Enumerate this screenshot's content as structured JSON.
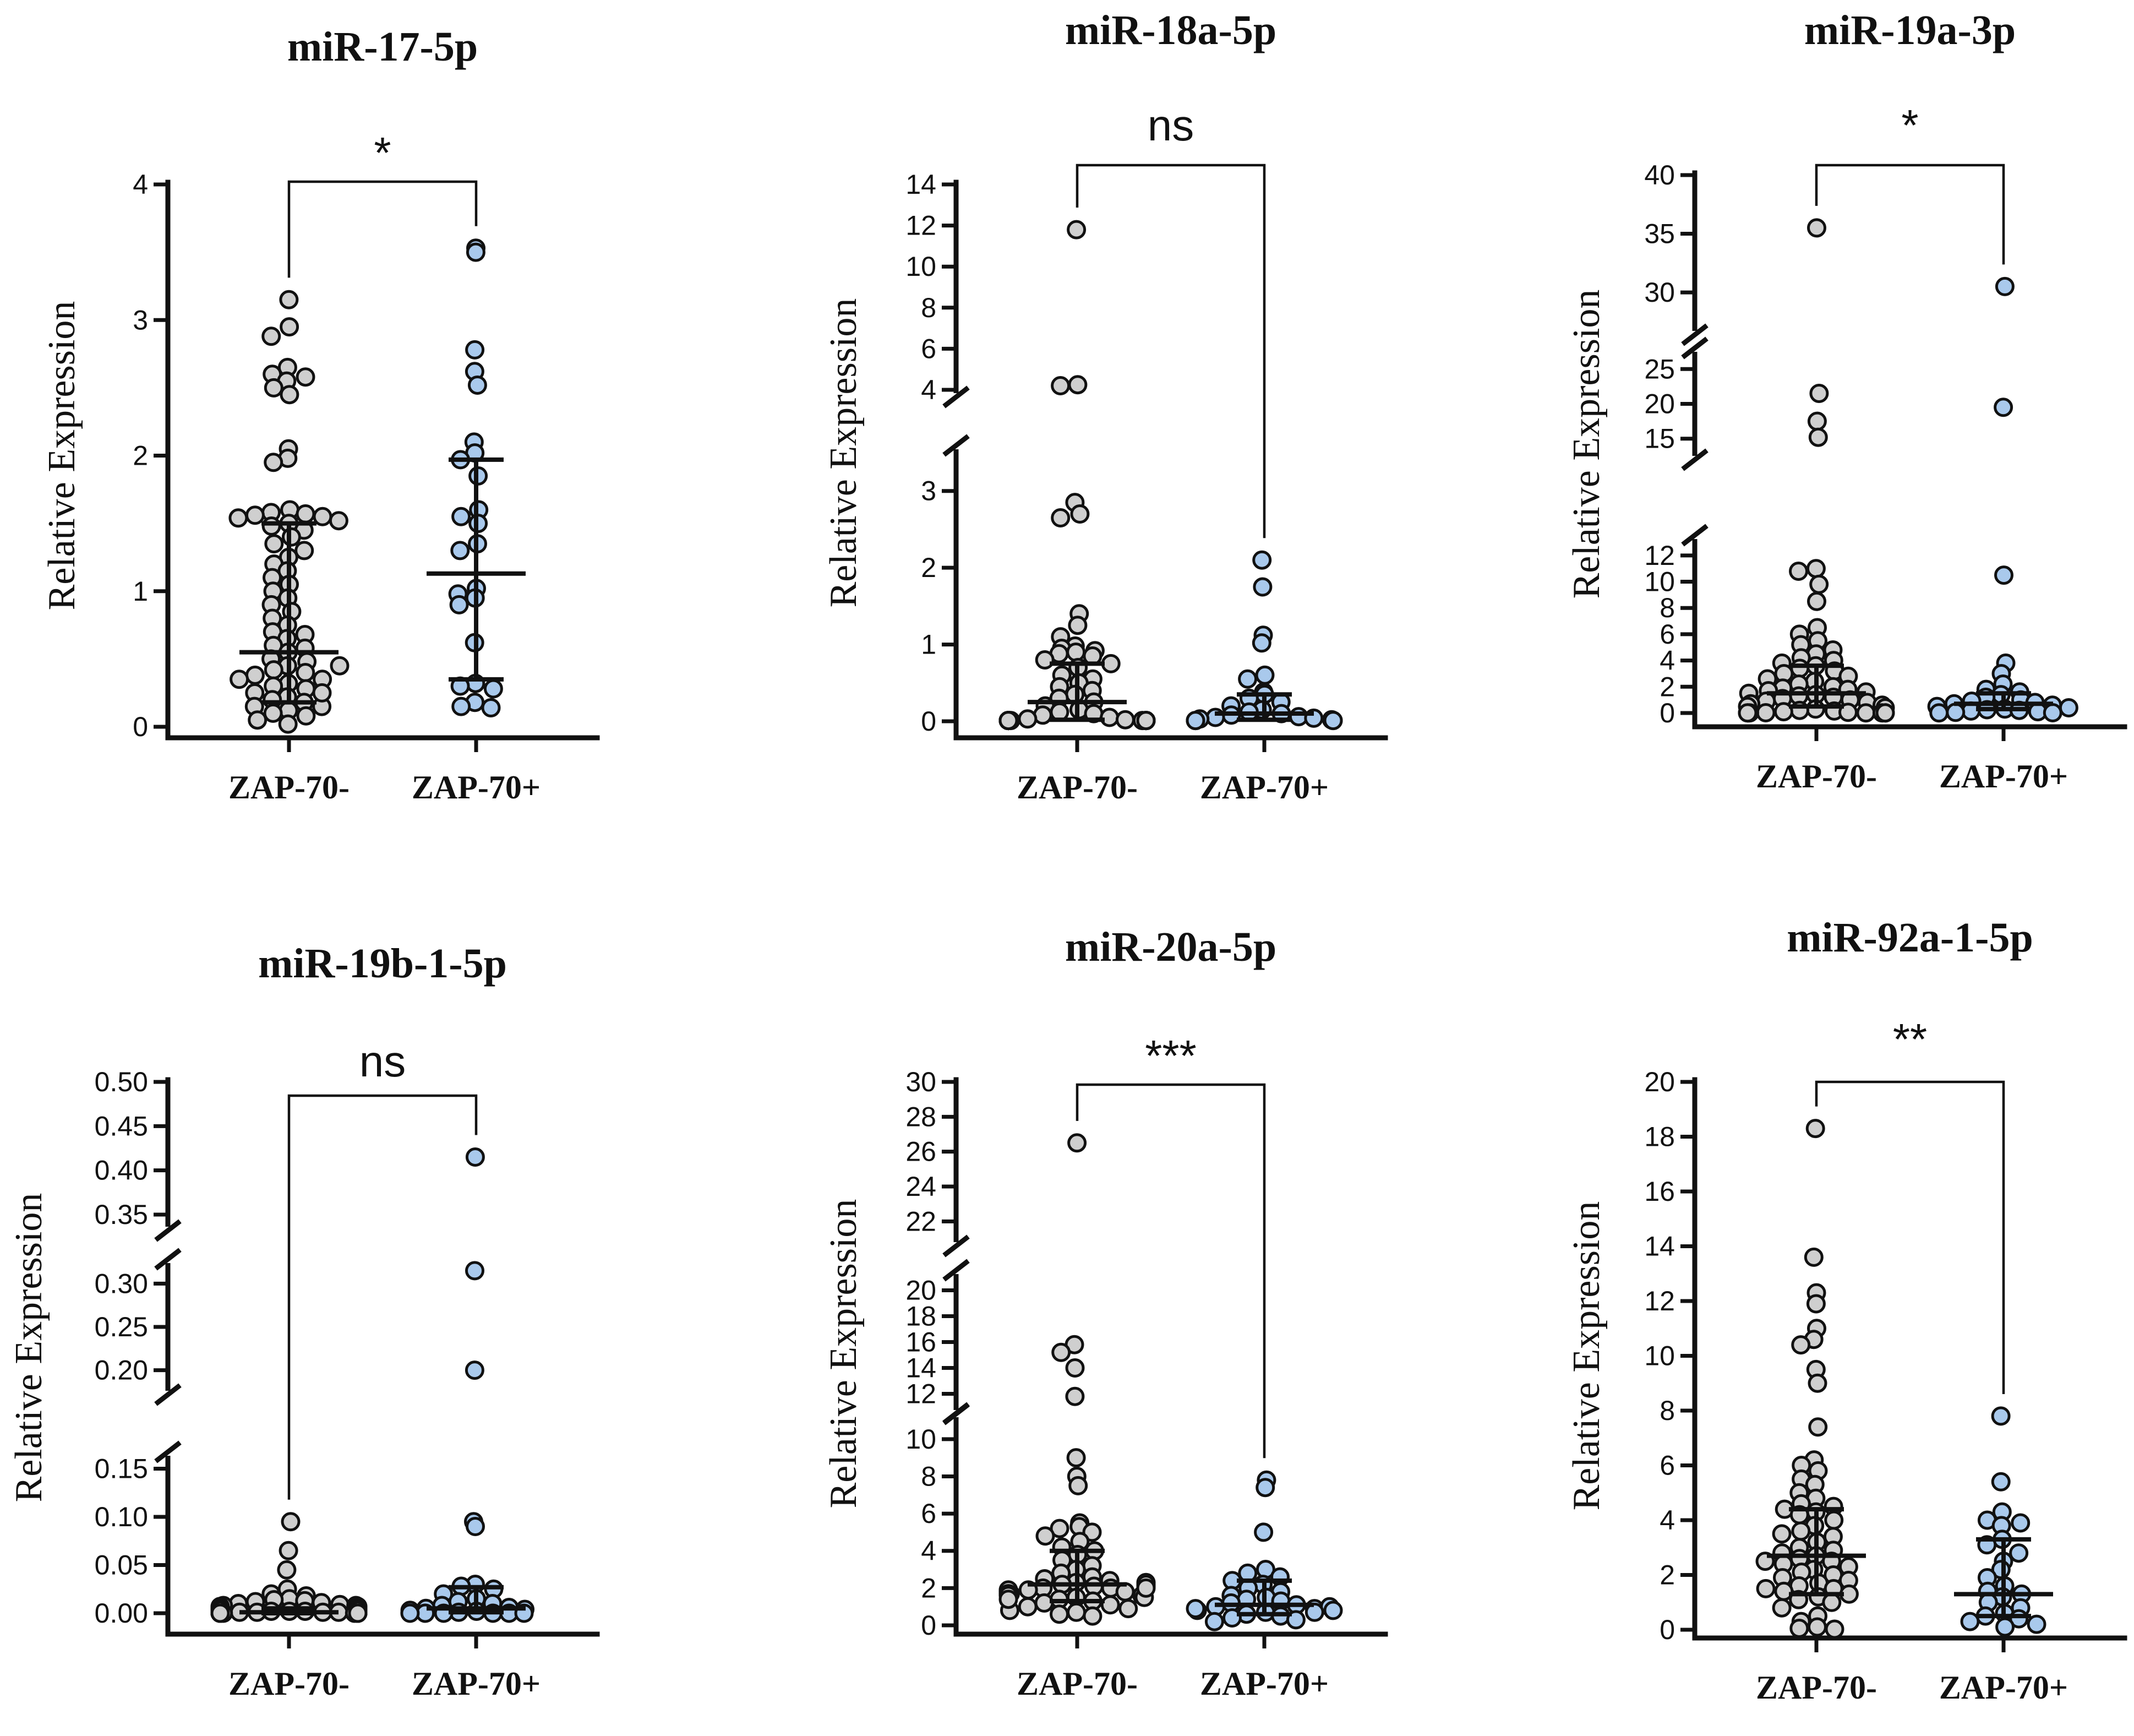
{
  "colors": {
    "zap_neg": "#cfcfcf",
    "zap_pos": "#a9c9ec",
    "ink": "#111111"
  },
  "chart_data": [
    {
      "type": "scatter",
      "title": "miR-17-5p",
      "ylabel": "Relative Expression",
      "categories": [
        "ZAP-70-",
        "ZAP-70+"
      ],
      "significance": "*",
      "ylim": [
        0,
        4
      ],
      "segments": [
        {
          "range": [
            0,
            4
          ],
          "ticks": [
            0,
            1,
            2,
            3,
            4
          ]
        }
      ],
      "series": [
        {
          "name": "ZAP-70-",
          "median": 0.55,
          "q1": 0.18,
          "q3": 1.5,
          "values": [
            3.15,
            2.95,
            2.88,
            2.65,
            2.6,
            2.58,
            2.55,
            2.5,
            2.45,
            2.05,
            1.98,
            1.95,
            1.6,
            1.58,
            1.57,
            1.56,
            1.55,
            1.54,
            1.52,
            1.5,
            1.48,
            1.45,
            1.4,
            1.35,
            1.3,
            1.25,
            1.2,
            1.15,
            1.1,
            1.05,
            1.0,
            0.95,
            0.9,
            0.85,
            0.8,
            0.75,
            0.7,
            0.68,
            0.65,
            0.6,
            0.58,
            0.55,
            0.5,
            0.48,
            0.45,
            0.42,
            0.4,
            0.38,
            0.35,
            0.32,
            0.3,
            0.28,
            0.25,
            0.22,
            0.2,
            0.18,
            0.15,
            0.12,
            0.1,
            0.08,
            0.05,
            0.02,
            0.15,
            0.25,
            0.35,
            0.45
          ]
        },
        {
          "name": "ZAP-70+",
          "median": 1.13,
          "q1": 0.35,
          "q3": 1.97,
          "values": [
            3.53,
            3.5,
            2.78,
            2.62,
            2.52,
            2.1,
            2.02,
            1.97,
            1.85,
            1.6,
            1.55,
            1.5,
            1.35,
            1.3,
            1.02,
            0.98,
            0.95,
            0.9,
            0.62,
            0.32,
            0.3,
            0.28,
            0.18,
            0.15,
            0.14
          ]
        }
      ]
    },
    {
      "type": "scatter",
      "title": "miR-18a-5p",
      "ylabel": "Relative Expression",
      "categories": [
        "ZAP-70-",
        "ZAP-70+"
      ],
      "significance": "ns",
      "ylim": [
        0,
        14
      ],
      "segments": [
        {
          "range": [
            0,
            3.5
          ],
          "ticks": [
            0,
            1,
            2,
            3
          ]
        },
        {
          "range": [
            4,
            14
          ],
          "ticks": [
            4,
            6,
            8,
            10,
            12,
            14
          ]
        }
      ],
      "series": [
        {
          "name": "ZAP-70-",
          "median": 0.25,
          "q1": 0.02,
          "q3": 0.75,
          "values": [
            11.8,
            4.25,
            4.2,
            2.85,
            2.7,
            2.65,
            1.4,
            1.25,
            1.1,
            0.98,
            0.95,
            0.92,
            0.9,
            0.88,
            0.85,
            0.8,
            0.75,
            0.7,
            0.6,
            0.55,
            0.5,
            0.45,
            0.4,
            0.35,
            0.3,
            0.25,
            0.2,
            0.15,
            0.12,
            0.1,
            0.08,
            0.05,
            0.03,
            0.02,
            0.01,
            0.01,
            0.01,
            0.01,
            0.01,
            0.01,
            0.01,
            0.01,
            0.01,
            0.01,
            0.01,
            0.01,
            0.01,
            0.01,
            0.01,
            0.01,
            0.01,
            0.01,
            0.01,
            0.01,
            0.01,
            0.01,
            0.01,
            0.01,
            0.01,
            0.01
          ]
        },
        {
          "name": "ZAP-70+",
          "median": 0.1,
          "q1": 0.02,
          "q3": 0.35,
          "values": [
            2.1,
            1.75,
            1.12,
            1.02,
            0.6,
            0.55,
            0.38,
            0.35,
            0.3,
            0.25,
            0.2,
            0.15,
            0.12,
            0.1,
            0.08,
            0.06,
            0.05,
            0.04,
            0.03,
            0.02,
            0.01,
            0.01,
            0.01,
            0.01,
            0.01
          ]
        }
      ]
    },
    {
      "type": "scatter",
      "title": "miR-19a-3p",
      "ylabel": "Relative Expression",
      "categories": [
        "ZAP-70-",
        "ZAP-70+"
      ],
      "significance": "*",
      "ylim": [
        0,
        40
      ],
      "segments": [
        {
          "range": [
            0,
            13
          ],
          "ticks": [
            0,
            2,
            4,
            6,
            8,
            10,
            12
          ]
        },
        {
          "range": [
            13,
            27
          ],
          "ticks": [
            15,
            20,
            25
          ]
        },
        {
          "range": [
            27,
            40
          ],
          "ticks": [
            30,
            35,
            40
          ]
        }
      ],
      "series": [
        {
          "name": "ZAP-70-",
          "median": 1.5,
          "q1": 0.5,
          "q3": 3.6,
          "values": [
            35.5,
            21.5,
            17.5,
            15.2,
            11.0,
            10.8,
            9.8,
            8.5,
            6.5,
            6.0,
            5.5,
            5.2,
            4.8,
            4.5,
            4.2,
            4.0,
            3.8,
            3.6,
            3.4,
            3.2,
            3.0,
            2.8,
            2.6,
            2.4,
            2.2,
            2.0,
            1.9,
            1.8,
            1.7,
            1.6,
            1.5,
            1.4,
            1.3,
            1.2,
            1.1,
            1.0,
            0.9,
            0.8,
            0.7,
            0.6,
            0.5,
            0.4,
            0.3,
            0.2,
            0.15,
            0.1,
            0.05,
            0.02,
            0.01,
            0.01,
            0.01,
            0.01,
            0.01,
            0.01,
            0.01
          ]
        },
        {
          "name": "ZAP-70+",
          "median": 0.7,
          "q1": 0.3,
          "q3": 1.5,
          "values": [
            30.5,
            19.5,
            10.5,
            3.8,
            3.0,
            2.2,
            1.8,
            1.6,
            1.4,
            1.2,
            1.0,
            0.9,
            0.8,
            0.7,
            0.6,
            0.5,
            0.4,
            0.3,
            0.25,
            0.2,
            0.15,
            0.1,
            0.05,
            0.02,
            0.01
          ]
        }
      ]
    },
    {
      "type": "scatter",
      "title": "miR-19b-1-5p",
      "ylabel": "Relative Expression",
      "categories": [
        "ZAP-70-",
        "ZAP-70+"
      ],
      "significance": "ns",
      "ylim": [
        0,
        0.5
      ],
      "segments": [
        {
          "range": [
            0,
            0.16
          ],
          "ticks": [
            "0.00",
            "0.05",
            "0.10",
            "0.15"
          ]
        },
        {
          "range": [
            0.18,
            0.32
          ],
          "ticks": [
            "0.20",
            "0.25",
            "0.30"
          ]
        },
        {
          "range": [
            0.34,
            0.5
          ],
          "ticks": [
            "0.35",
            "0.40",
            "0.45",
            "0.50"
          ]
        }
      ],
      "series": [
        {
          "name": "ZAP-70-",
          "median": 0.001,
          "q1": 0.0,
          "q3": 0.005,
          "values": [
            0.095,
            0.065,
            0.045,
            0.025,
            0.02,
            0.018,
            0.015,
            0.014,
            0.013,
            0.012,
            0.011,
            0.01,
            0.009,
            0.008,
            0.008,
            0.007,
            0.007,
            0.006,
            0.006,
            0.005,
            0.005,
            0.004,
            0.004,
            0.003,
            0.003,
            0.002,
            0.002,
            0.002,
            0.001,
            0.001,
            0.001,
            0.001,
            0.0,
            0.0,
            0.0,
            0.0,
            0.0,
            0.0,
            0.0,
            0.0,
            0.0,
            0.0,
            0.0,
            0.0,
            0.0
          ]
        },
        {
          "name": "ZAP-70+",
          "median": 0.005,
          "q1": 0.001,
          "q3": 0.027,
          "values": [
            0.415,
            0.315,
            0.2,
            0.095,
            0.09,
            0.03,
            0.028,
            0.025,
            0.02,
            0.015,
            0.012,
            0.01,
            0.008,
            0.006,
            0.005,
            0.004,
            0.003,
            0.002,
            0.001,
            0.0,
            0.0,
            0.0,
            0.0,
            0.0,
            0.0
          ]
        }
      ]
    },
    {
      "type": "scatter",
      "title": "miR-20a-5p",
      "ylabel": "Relative Expression",
      "categories": [
        "ZAP-70-",
        "ZAP-70+"
      ],
      "significance": "***",
      "ylim": [
        0,
        30
      ],
      "segments": [
        {
          "range": [
            0,
            11
          ],
          "ticks": [
            0,
            2,
            4,
            6,
            8,
            10
          ]
        },
        {
          "range": [
            11,
            21
          ],
          "ticks": [
            12,
            14,
            16,
            18,
            20
          ]
        },
        {
          "range": [
            21,
            30
          ],
          "ticks": [
            22,
            24,
            26,
            28,
            30
          ]
        }
      ],
      "series": [
        {
          "name": "ZAP-70-",
          "median": 2.2,
          "q1": 1.3,
          "q3": 4.0,
          "values": [
            26.5,
            15.8,
            15.2,
            14.0,
            11.8,
            9.0,
            8.0,
            7.5,
            5.5,
            5.3,
            5.2,
            5.0,
            4.8,
            4.5,
            4.2,
            4.0,
            3.8,
            3.5,
            3.2,
            3.0,
            2.8,
            2.6,
            2.5,
            2.4,
            2.3,
            2.2,
            2.1,
            2.0,
            2.0,
            1.9,
            1.8,
            1.7,
            1.6,
            1.5,
            1.4,
            1.3,
            1.2,
            1.1,
            1.0,
            0.9,
            0.8,
            0.7,
            0.6,
            0.5,
            1.8,
            2.1,
            1.9,
            2.3,
            1.7,
            2.2,
            1.6,
            1.5,
            2.0,
            1.4
          ]
        },
        {
          "name": "ZAP-70+",
          "median": 1.1,
          "q1": 0.6,
          "q3": 2.4,
          "values": [
            7.8,
            7.4,
            5.0,
            3.0,
            2.8,
            2.6,
            2.4,
            2.2,
            2.0,
            1.8,
            1.6,
            1.5,
            1.4,
            1.3,
            1.2,
            1.1,
            1.0,
            0.9,
            0.8,
            0.7,
            0.6,
            0.5,
            0.4,
            0.3,
            0.2,
            1.0,
            0.9,
            0.8,
            0.7
          ]
        }
      ]
    },
    {
      "type": "scatter",
      "title": "miR-92a-1-5p",
      "ylabel": "Relative Expression",
      "categories": [
        "ZAP-70-",
        "ZAP-70+"
      ],
      "significance": "**",
      "ylim": [
        0,
        20
      ],
      "segments": [
        {
          "range": [
            0,
            20
          ],
          "ticks": [
            0,
            2,
            4,
            6,
            8,
            10,
            12,
            14,
            16,
            18,
            20
          ]
        }
      ],
      "series": [
        {
          "name": "ZAP-70-",
          "median": 2.7,
          "q1": 1.3,
          "q3": 4.4,
          "values": [
            18.3,
            13.6,
            12.3,
            11.9,
            11.0,
            10.6,
            10.4,
            9.5,
            9.0,
            7.4,
            6.2,
            6.0,
            5.8,
            5.5,
            5.3,
            5.0,
            4.8,
            4.6,
            4.5,
            4.4,
            4.3,
            4.2,
            4.0,
            3.8,
            3.6,
            3.4,
            3.2,
            3.0,
            2.9,
            2.8,
            2.7,
            2.6,
            2.5,
            2.4,
            2.3,
            2.2,
            2.1,
            2.0,
            1.9,
            1.8,
            1.7,
            1.6,
            1.5,
            1.4,
            1.3,
            1.2,
            1.1,
            1.0,
            0.8,
            0.5,
            0.3,
            0.1,
            2.5,
            3.5,
            1.5,
            0.05,
            0.02
          ]
        },
        {
          "name": "ZAP-70+",
          "median": 1.3,
          "q1": 0.5,
          "q3": 3.3,
          "values": [
            7.8,
            5.4,
            4.3,
            4.0,
            3.9,
            3.8,
            3.3,
            3.1,
            2.8,
            2.5,
            2.2,
            1.9,
            1.6,
            1.4,
            1.3,
            1.2,
            1.0,
            0.8,
            0.6,
            0.5,
            0.4,
            0.3,
            0.2,
            0.1
          ]
        }
      ]
    }
  ]
}
